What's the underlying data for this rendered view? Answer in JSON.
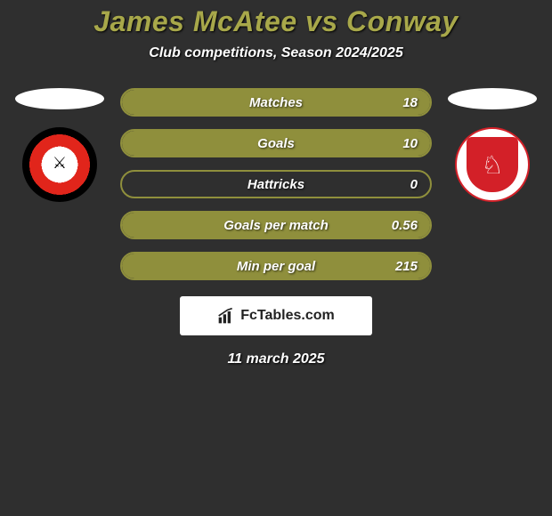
{
  "header": {
    "title": "James McAtee vs Conway",
    "subtitle": "Club competitions, Season 2024/2025"
  },
  "colors": {
    "accent": "#a8a84a",
    "background": "#2f2f2f",
    "pill_fill": "#8f8f3c",
    "pill_border": "#8f8f3c",
    "text": "#ffffff"
  },
  "player_left": {
    "club": "Sheffield United",
    "crest_colors": {
      "outer": "#000000",
      "ring": "#e1251b",
      "inner": "#ffffff"
    }
  },
  "player_right": {
    "club": "Middlesbrough",
    "crest_colors": {
      "shield": "#d32028",
      "bg": "#ffffff"
    }
  },
  "stats": [
    {
      "label": "Matches",
      "value": "18",
      "fill_pct": 100
    },
    {
      "label": "Goals",
      "value": "10",
      "fill_pct": 100
    },
    {
      "label": "Hattricks",
      "value": "0",
      "fill_pct": 0
    },
    {
      "label": "Goals per match",
      "value": "0.56",
      "fill_pct": 100
    },
    {
      "label": "Min per goal",
      "value": "215",
      "fill_pct": 100
    }
  ],
  "brand": {
    "text": "FcTables.com",
    "icon": "bar-chart-icon"
  },
  "footer": {
    "date": "11 march 2025"
  },
  "style": {
    "title_fontsize": 32,
    "subtitle_fontsize": 16,
    "stat_fontsize": 15,
    "pill_height": 32,
    "pill_radius": 16
  }
}
